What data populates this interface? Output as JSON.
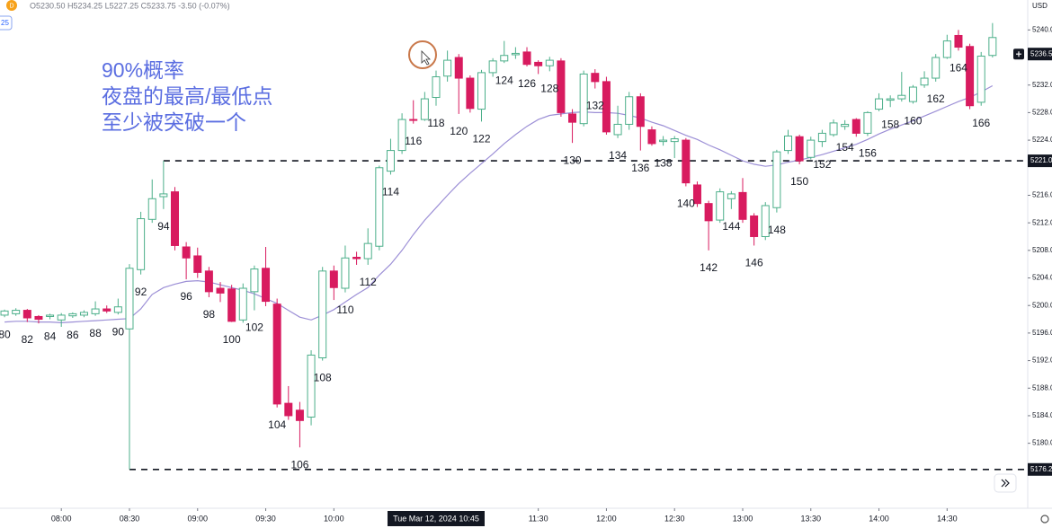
{
  "chart_data": {
    "type": "candlestick",
    "symbol_badge": "D",
    "ohlc_header": "O5230.50 H5234.25 L5227.25 C5233.75 -3.50 (-0.07%)",
    "side_badge": "25",
    "currency": "USD",
    "annotation": [
      "90%概率",
      "夜盘的最高/最低点",
      "至少被突破一个"
    ],
    "annotation_color": "#5b6ee1",
    "up_color": "#4caf8a",
    "down_color": "#d81b5f",
    "x": [
      80,
      81,
      82,
      83,
      84,
      85,
      86,
      87,
      88,
      89,
      90,
      91,
      92,
      93,
      94,
      95,
      96,
      97,
      98,
      99,
      100,
      101,
      102,
      103,
      104,
      105,
      106,
      107,
      108,
      109,
      110,
      111,
      112,
      113,
      114,
      115,
      116,
      117,
      118,
      119,
      120,
      121,
      122,
      123,
      124,
      125,
      126,
      127,
      128,
      129,
      130,
      131,
      132,
      133,
      134,
      135,
      136,
      137,
      138,
      139,
      140,
      141,
      142,
      143,
      144,
      145,
      146,
      147,
      148,
      149,
      150,
      151,
      152,
      153,
      154,
      155,
      156,
      157,
      158,
      159,
      160,
      161,
      162,
      163,
      164,
      165,
      166,
      167
    ],
    "open": [
      5198.6,
      5198.8,
      5199.3,
      5198.4,
      5198.4,
      5197.9,
      5198.5,
      5198.6,
      5198.8,
      5199.5,
      5199.0,
      5196.6,
      5205.2,
      5212.5,
      5215.8,
      5216.5,
      5208.5,
      5207.2,
      5205.0,
      5202.5,
      5202.4,
      5197.9,
      5202.0,
      5205.4,
      5200.2,
      5185.8,
      5184.8,
      5183.8,
      5192.4,
      5205.0,
      5202.5,
      5207.0,
      5206.8,
      5208.6,
      5219.5,
      5222.5,
      5227.0,
      5227.0,
      5230.2,
      5233.3,
      5236.0,
      5233.0,
      5228.5,
      5233.8,
      5235.5,
      5236.4,
      5236.8,
      5235.3,
      5234.8,
      5235.5,
      5227.8,
      5226.4,
      5233.7,
      5232.5,
      5224.8,
      5226.3,
      5230.3,
      5225.5,
      5223.8,
      5223.8,
      5224.0,
      5217.5,
      5214.8,
      5212.4,
      5215.5,
      5216.4,
      5213.0,
      5210.0,
      5214.2,
      5222.5,
      5224.5,
      5221.5,
      5223.8,
      5224.8,
      5226.0,
      5227.0,
      5225.0,
      5228.5,
      5229.8,
      5230.0,
      5229.6,
      5232.0,
      5233.0,
      5236.0,
      5239.2,
      5237.6,
      5229.5,
      5236.3
    ],
    "high": [
      5199.4,
      5199.6,
      5199.5,
      5198.6,
      5198.8,
      5198.9,
      5199.0,
      5199.3,
      5200.6,
      5200.0,
      5201.0,
      5206.0,
      5213.6,
      5218.3,
      5221.0,
      5217.2,
      5209.2,
      5208.4,
      5205.6,
      5203.4,
      5203.0,
      5203.2,
      5205.8,
      5208.5,
      5201.0,
      5188.3,
      5186.0,
      5193.5,
      5205.6,
      5205.8,
      5208.7,
      5207.8,
      5211.2,
      5220.3,
      5224.2,
      5227.9,
      5229.8,
      5231.0,
      5234.1,
      5237.0,
      5236.5,
      5233.4,
      5234.2,
      5235.9,
      5238.4,
      5237.5,
      5237.5,
      5235.6,
      5236.1,
      5235.9,
      5228.5,
      5234.1,
      5234.3,
      5233.2,
      5229.0,
      5231.0,
      5230.8,
      5226.0,
      5224.6,
      5224.6,
      5224.3,
      5218.0,
      5215.2,
      5217.0,
      5216.6,
      5218.5,
      5213.4,
      5215.0,
      5222.6,
      5225.5,
      5224.8,
      5224.5,
      5225.5,
      5227.0,
      5226.9,
      5227.2,
      5228.2,
      5230.8,
      5230.5,
      5233.9,
      5232.0,
      5234.0,
      5236.5,
      5239.3,
      5240.0,
      5238.0,
      5236.8,
      5241.0
    ],
    "low": [
      5198.3,
      5198.5,
      5197.6,
      5197.4,
      5198.0,
      5196.9,
      5198.2,
      5198.3,
      5198.5,
      5198.9,
      5198.7,
      5176.2,
      5204.5,
      5212.0,
      5214.0,
      5208.0,
      5203.8,
      5204.0,
      5201.2,
      5200.5,
      5197.6,
      5197.5,
      5199.3,
      5199.9,
      5185.2,
      5183.4,
      5179.4,
      5182.6,
      5192.0,
      5200.8,
      5201.9,
      5205.9,
      5205.9,
      5208.0,
      5219.0,
      5222.0,
      5226.4,
      5226.8,
      5229.0,
      5232.5,
      5227.8,
      5228.0,
      5226.7,
      5233.2,
      5235.2,
      5235.8,
      5234.7,
      5233.6,
      5234.0,
      5227.4,
      5223.6,
      5226.0,
      5231.5,
      5224.8,
      5224.3,
      5225.5,
      5222.5,
      5223.2,
      5223.2,
      5221.4,
      5217.3,
      5214.3,
      5208.0,
      5212.0,
      5214.0,
      5212.0,
      5208.7,
      5209.5,
      5213.5,
      5222.0,
      5220.5,
      5221.2,
      5223.0,
      5224.5,
      5225.5,
      5224.5,
      5224.6,
      5228.2,
      5228.8,
      5229.6,
      5229.3,
      5231.6,
      5232.5,
      5235.8,
      5237.0,
      5228.5,
      5229.0,
      5236.0
    ],
    "close": [
      5199.2,
      5199.3,
      5198.2,
      5198.0,
      5198.6,
      5198.6,
      5198.8,
      5199.0,
      5199.5,
      5199.2,
      5199.8,
      5205.4,
      5212.6,
      5215.5,
      5216.2,
      5208.7,
      5206.9,
      5204.8,
      5202.0,
      5201.8,
      5197.7,
      5202.5,
      5205.3,
      5200.6,
      5185.7,
      5184.0,
      5183.3,
      5192.8,
      5205.0,
      5202.6,
      5206.9,
      5206.8,
      5209.0,
      5220.0,
      5222.5,
      5227.0,
      5226.9,
      5230.0,
      5233.2,
      5235.6,
      5233.0,
      5228.6,
      5233.8,
      5235.5,
      5236.3,
      5236.6,
      5235.0,
      5234.8,
      5235.6,
      5228.0,
      5226.6,
      5233.6,
      5232.5,
      5225.2,
      5226.3,
      5230.3,
      5226.0,
      5223.5,
      5224.0,
      5224.2,
      5217.8,
      5214.8,
      5212.3,
      5216.5,
      5216.2,
      5212.5,
      5210.0,
      5214.5,
      5222.3,
      5224.6,
      5221.0,
      5224.0,
      5225.0,
      5226.5,
      5226.3,
      5225.0,
      5228.0,
      5230.0,
      5230.0,
      5230.5,
      5231.7,
      5233.0,
      5236.0,
      5238.4,
      5237.5,
      5229.0,
      5236.2,
      5238.9
    ],
    "ma": {
      "color": "#9c8fd6",
      "values": [
        5197.6,
        5197.7,
        5197.7,
        5197.6,
        5197.6,
        5197.5,
        5197.6,
        5197.7,
        5197.8,
        5197.9,
        5198.0,
        5198.1,
        5199.5,
        5201.6,
        5202.6,
        5203.1,
        5203.5,
        5203.6,
        5203.4,
        5203.0,
        5202.6,
        5202.2,
        5201.7,
        5201.0,
        5200.3,
        5199.3,
        5198.3,
        5197.9,
        5198.6,
        5199.4,
        5200.5,
        5201.6,
        5202.6,
        5204.4,
        5206.0,
        5208.0,
        5210.3,
        5212.4,
        5214.2,
        5216.0,
        5217.7,
        5219.2,
        5220.6,
        5222.0,
        5223.5,
        5224.8,
        5226.0,
        5227.0,
        5227.6,
        5227.8,
        5228.0,
        5228.1,
        5228.0,
        5228.0,
        5227.9,
        5227.6,
        5227.2,
        5226.6,
        5226.1,
        5225.4,
        5224.7,
        5224.1,
        5223.3,
        5222.6,
        5221.8,
        5221.0,
        5220.5,
        5220.2,
        5220.4,
        5220.8,
        5221.1,
        5221.5,
        5221.9,
        5222.4,
        5222.9,
        5223.4,
        5224.1,
        5224.9,
        5225.6,
        5226.2,
        5226.8,
        5227.5,
        5228.2,
        5228.9,
        5229.6,
        5230.2,
        5231.0,
        5231.9
      ]
    },
    "bar_labels": [
      80,
      82,
      84,
      86,
      88,
      90,
      92,
      94,
      96,
      98,
      100,
      102,
      104,
      106,
      108,
      110,
      112,
      114,
      116,
      118,
      120,
      122,
      124,
      126,
      128,
      130,
      132,
      134,
      136,
      138,
      140,
      142,
      144,
      146,
      148,
      150,
      152,
      154,
      156,
      158,
      160,
      162,
      164,
      166
    ],
    "xlim": [
      79.6,
      170.1
    ],
    "xticks": [
      {
        "value": 85,
        "label": "08:00"
      },
      {
        "value": 91,
        "label": "08:30"
      },
      {
        "value": 97,
        "label": "09:00"
      },
      {
        "value": 103,
        "label": "09:30"
      },
      {
        "value": 109,
        "label": "10:00"
      },
      {
        "value": 127,
        "label": "11:30"
      },
      {
        "value": 133,
        "label": "12:00"
      },
      {
        "value": 139,
        "label": "12:30"
      },
      {
        "value": 145,
        "label": "13:00"
      },
      {
        "value": 151,
        "label": "13:30"
      },
      {
        "value": 157,
        "label": "14:00"
      },
      {
        "value": 163,
        "label": "14:30"
      }
    ],
    "crosshair_x": {
      "value": 118,
      "label": "Tue Mar 12, 2024 10:45"
    },
    "ylim": [
      5172,
      5242
    ],
    "yticks": [
      {
        "value": 5180,
        "label": "5180.0"
      },
      {
        "value": 5184,
        "label": "5184.0"
      },
      {
        "value": 5188,
        "label": "5188.0"
      },
      {
        "value": 5192,
        "label": "5192.0"
      },
      {
        "value": 5196,
        "label": "5196.0"
      },
      {
        "value": 5200,
        "label": "5200.0"
      },
      {
        "value": 5204,
        "label": "5204.0"
      },
      {
        "value": 5208,
        "label": "5208.0"
      },
      {
        "value": 5212,
        "label": "5212.0"
      },
      {
        "value": 5216,
        "label": "5216.0"
      },
      {
        "value": 5224,
        "label": "5224.0"
      },
      {
        "value": 5228,
        "label": "5228.0"
      },
      {
        "value": 5232,
        "label": "5232.0"
      },
      {
        "value": 5240,
        "label": "5240.0"
      }
    ],
    "hlines": [
      {
        "value": 5221,
        "label": "5221.0"
      },
      {
        "value": 5176.2,
        "label": "5176.2"
      }
    ],
    "last_price": {
      "value": 5236.5,
      "label": "5236.5"
    }
  }
}
